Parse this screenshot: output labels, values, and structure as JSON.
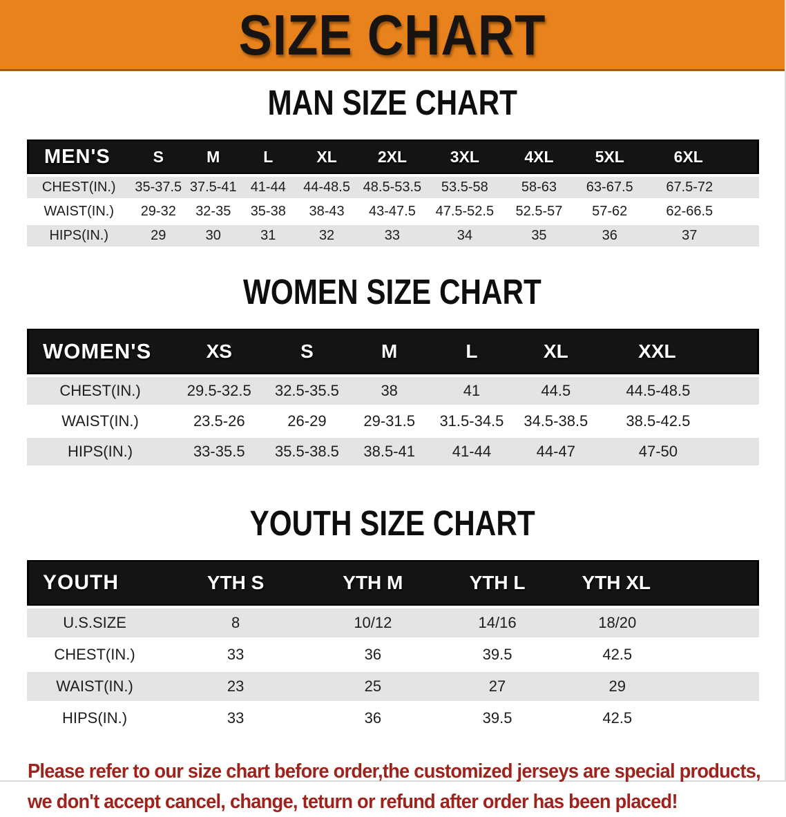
{
  "banner": {
    "title": "SIZE CHART"
  },
  "colors": {
    "banner_orange": "#E8821C",
    "banner_edge": "#A85A12",
    "table_header_black": "#141414",
    "row_gray": "#e4e4e4",
    "disclaimer_red": "#9e231c"
  },
  "sections": [
    {
      "kind": "men",
      "title": "MAN SIZE CHART",
      "table": {
        "header_label": "MEN'S",
        "columns": [
          "S",
          "M",
          "L",
          "XL",
          "2XL",
          "3XL",
          "4XL",
          "5XL",
          "6XL"
        ],
        "rows": [
          {
            "label": "CHEST(IN.)",
            "values": [
              "35-37.5",
              "37.5-41",
              "41-44",
              "44-48.5",
              "48.5-53.5",
              "53.5-58",
              "58-63",
              "63-67.5",
              "67.5-72"
            ]
          },
          {
            "label": "WAIST(IN.)",
            "values": [
              "29-32",
              "32-35",
              "35-38",
              "38-43",
              "43-47.5",
              "47.5-52.5",
              "52.5-57",
              "57-62",
              "62-66.5"
            ]
          },
          {
            "label": "HIPS(IN.)",
            "values": [
              "29",
              "30",
              "31",
              "32",
              "33",
              "34",
              "35",
              "36",
              "37"
            ]
          }
        ]
      }
    },
    {
      "kind": "women",
      "title": "WOMEN SIZE CHART",
      "table": {
        "header_label": "WOMEN'S",
        "columns": [
          "XS",
          "S",
          "M",
          "L",
          "XL",
          "XXL"
        ],
        "rows": [
          {
            "label": "CHEST(IN.)",
            "values": [
              "29.5-32.5",
              "32.5-35.5",
              "38",
              "41",
              "44.5",
              "44.5-48.5"
            ]
          },
          {
            "label": "WAIST(IN.)",
            "values": [
              "23.5-26",
              "26-29",
              "29-31.5",
              "31.5-34.5",
              "34.5-38.5",
              "38.5-42.5"
            ]
          },
          {
            "label": "HIPS(IN.)",
            "values": [
              "33-35.5",
              "35.5-38.5",
              "38.5-41",
              "41-44",
              "44-47",
              "47-50"
            ]
          }
        ]
      }
    },
    {
      "kind": "youth",
      "title": "YOUTH SIZE CHART",
      "table": {
        "header_label": "YOUTH",
        "columns": [
          "YTH S",
          "YTH M",
          "YTH L",
          "YTH XL"
        ],
        "rows": [
          {
            "label": "U.S.SIZE",
            "values": [
              "8",
              "10/12",
              "14/16",
              "18/20"
            ]
          },
          {
            "label": "CHEST(IN.)",
            "values": [
              "33",
              "36",
              "39.5",
              "42.5"
            ]
          },
          {
            "label": "WAIST(IN.)",
            "values": [
              "23",
              "25",
              "27",
              "29"
            ]
          },
          {
            "label": "HIPS(IN.)",
            "values": [
              "33",
              "36",
              "39.5",
              "42.5"
            ]
          }
        ]
      }
    }
  ],
  "disclaimer": {
    "line1": "Please refer to our size chart before order,the customized jerseys are special products,",
    "line2": "we don't accept cancel, change, teturn or refund after order has been placed!"
  }
}
